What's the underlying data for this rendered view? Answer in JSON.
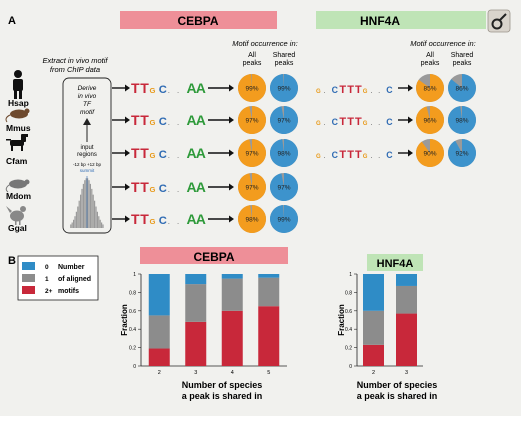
{
  "panel_a": {
    "label": "A",
    "tf1": "CEBPA",
    "tf2": "HNF4A",
    "extract_text": [
      "Extract in vivo motif",
      "from ChIP data"
    ],
    "derive_text": [
      "Derive",
      "in vivo",
      "TF",
      "motif"
    ],
    "input_text": [
      "input",
      "regions"
    ],
    "range_text": "-12 bp  +12 bp",
    "summit_text": "summit",
    "occurrence_header": "Motif occurrence in:",
    "all_peaks": [
      "All",
      "peaks"
    ],
    "shared_peaks": [
      "Shared",
      "peaks"
    ],
    "species": [
      "Hsap",
      "Mmus",
      "Cfam",
      "Mdom",
      "Ggal"
    ],
    "motif_cebpa_text": "TTGC..AA",
    "motif_hnf4a_text": "G.CTTTG..C",
    "cebpa_all": [
      99,
      97,
      97,
      97,
      98
    ],
    "cebpa_shared": [
      99,
      97,
      98,
      97,
      99
    ],
    "hnf4a_all": [
      85,
      96,
      90
    ],
    "hnf4a_shared": [
      86,
      98,
      92
    ]
  },
  "panel_b": {
    "label": "B",
    "legend": [
      {
        "key": "0",
        "label": "Number",
        "color": "#2f8cc6"
      },
      {
        "key": "1",
        "label": "of aligned",
        "color": "#8c8c8c"
      },
      {
        "key": "2+",
        "label": "motifs",
        "color": "#c8283a"
      }
    ],
    "cebpa_title": "CEBPA",
    "hnf4a_title": "HNF4A",
    "xlabel": [
      "Number of species",
      "a peak is shared in"
    ],
    "ylabel": "Fraction"
  },
  "colors": {
    "cebpa_band": "#ee8f98",
    "hnf4a_band": "#bfe4b6",
    "pie_orange": "#f39c1e",
    "pie_blue": "#3d93cc",
    "pie_gray": "#9a9a9a",
    "bar_blue": "#2f8cc6",
    "bar_gray": "#8c8c8c",
    "bar_red": "#c8283a"
  },
  "chart_data": [
    {
      "type": "bar",
      "stacked": true,
      "title": "CEBPA",
      "categories": [
        "2",
        "3",
        "4",
        "5"
      ],
      "series": [
        {
          "name": "2+",
          "values": [
            0.19,
            0.48,
            0.6,
            0.65
          ]
        },
        {
          "name": "1",
          "values": [
            0.36,
            0.41,
            0.35,
            0.31
          ]
        },
        {
          "name": "0",
          "values": [
            0.45,
            0.11,
            0.05,
            0.04
          ]
        }
      ],
      "xlabel": "Number of species a peak is shared in",
      "ylabel": "Fraction",
      "ylim": [
        0,
        1
      ],
      "yticks": [
        "0",
        "0.2",
        "0.4",
        "0.6",
        "0.8",
        "1"
      ]
    },
    {
      "type": "bar",
      "stacked": true,
      "title": "HNF4A",
      "categories": [
        "2",
        "3"
      ],
      "series": [
        {
          "name": "2+",
          "values": [
            0.23,
            0.57
          ]
        },
        {
          "name": "1",
          "values": [
            0.37,
            0.3
          ]
        },
        {
          "name": "0",
          "values": [
            0.4,
            0.13
          ]
        }
      ],
      "xlabel": "Number of species a peak is shared in",
      "ylabel": "Fraction",
      "ylim": [
        0,
        1
      ],
      "yticks": [
        "0",
        "0.2",
        "0.4",
        "0.6",
        "0.8",
        "1"
      ]
    }
  ]
}
